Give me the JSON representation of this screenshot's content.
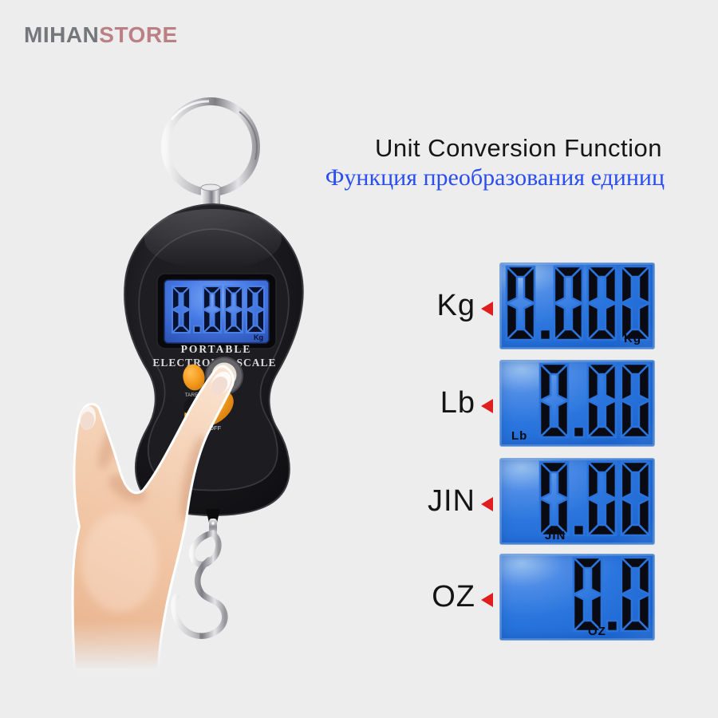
{
  "logo": {
    "part1": "MIHAN",
    "part2": "STORE"
  },
  "heading": {
    "title_en": "Unit Conversion Function",
    "title_ru": "Функция преобразования единиц"
  },
  "scale": {
    "display_value": "0.000",
    "display_unit": "Kg",
    "brand_line1": "PORTABLE",
    "brand_line2": "ELECTRONIC  SCALE",
    "button_tare": "TARE",
    "button_onoff": "ON/OFF"
  },
  "units": [
    {
      "label": "Kg",
      "value": "0.000",
      "unit_tag": "Kg"
    },
    {
      "label": "Lb",
      "value": "0.00",
      "unit_tag": "Lb"
    },
    {
      "label": "JIN",
      "value": "0.00",
      "unit_tag": "JIN"
    },
    {
      "label": "OZ",
      "value": "0.0",
      "unit_tag": "OZ"
    }
  ],
  "colors": {
    "background": "#ededee",
    "lcd_blue": "#2a76de",
    "lcd_blue_light": "#98c0ee",
    "digit": "#0a0a12",
    "arrow_red": "#e01e1e",
    "button_orange": "#f59b1e",
    "logo_gray": "#76777a",
    "logo_rose": "#ba8084",
    "title_ru_blue": "#2b4ef0"
  }
}
